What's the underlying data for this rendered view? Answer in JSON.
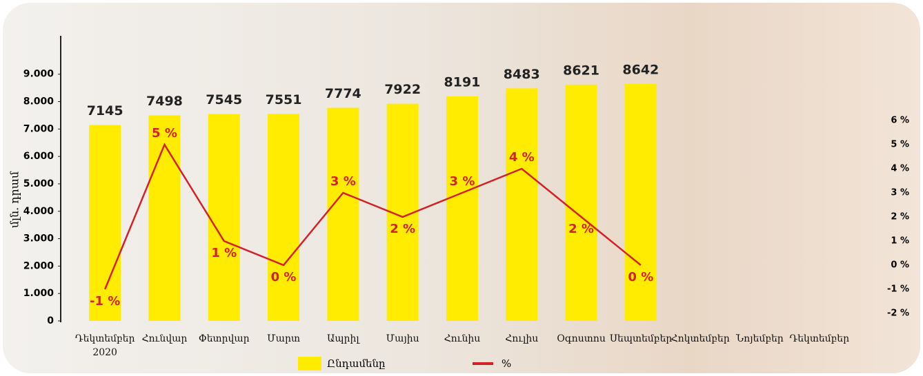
{
  "chart_data": {
    "type": "bar_line",
    "ylabel": "մլն. դրամ",
    "categories": [
      "Դեկտեմբեր 2020",
      "Հունվար",
      "Փետրվար",
      "Մարտ",
      "Ապրիլ",
      "Մայիս",
      "Հունիս",
      "Հուլիս",
      "Օգոստոս",
      "Սեպտեմբեր",
      "Հոկտեմբեր",
      "Նոյեմբեր",
      "Դեկտեմբեր"
    ],
    "series": [
      {
        "name": "Ընդամենը",
        "type": "bar",
        "color": "#ffec00",
        "values": [
          7145,
          7498,
          7545,
          7551,
          7774,
          7922,
          8191,
          8483,
          8621,
          8642,
          null,
          null,
          null
        ]
      },
      {
        "name": "%",
        "type": "line",
        "axis": "y2",
        "color": "#d42027",
        "values": [
          -1,
          5,
          1,
          0,
          3,
          2,
          3,
          4,
          2,
          0,
          null,
          null,
          null
        ],
        "value_labels": [
          "-1 %",
          "5 %",
          "1 %",
          "0 %",
          "3 %",
          "2 %",
          "3 %",
          "4 %",
          "2 %",
          "0 %",
          null,
          null,
          null
        ]
      }
    ],
    "ylim": [
      0,
      10400
    ],
    "yticks": [
      0,
      {
        "value": 1000,
        "label": "1.000"
      },
      {
        "value": 2000,
        "label": "2.000"
      },
      {
        "value": 3000,
        "label": "3.000"
      },
      {
        "value": 4000,
        "label": "4.000"
      },
      {
        "value": 5000,
        "label": "5.000"
      },
      {
        "value": 6000,
        "label": "6.000"
      },
      {
        "value": 7000,
        "label": "7.000"
      },
      {
        "value": 8000,
        "label": "8.000"
      },
      {
        "value": 9000,
        "label": "9.000"
      }
    ],
    "y2lim": [
      -2,
      6
    ],
    "y2ticks": [
      {
        "value": -2,
        "label": "-2 %"
      },
      {
        "value": -1,
        "label": "-1 %"
      },
      {
        "value": 0,
        "label": "0 %"
      },
      {
        "value": 1,
        "label": "1 %"
      },
      {
        "value": 2,
        "label": "2 %"
      },
      {
        "value": 3,
        "label": "3 %"
      },
      {
        "value": 4,
        "label": "4 %"
      },
      {
        "value": 5,
        "label": "5 %"
      },
      {
        "value": 6,
        "label": "6 %"
      }
    ],
    "legend": "bottom"
  }
}
